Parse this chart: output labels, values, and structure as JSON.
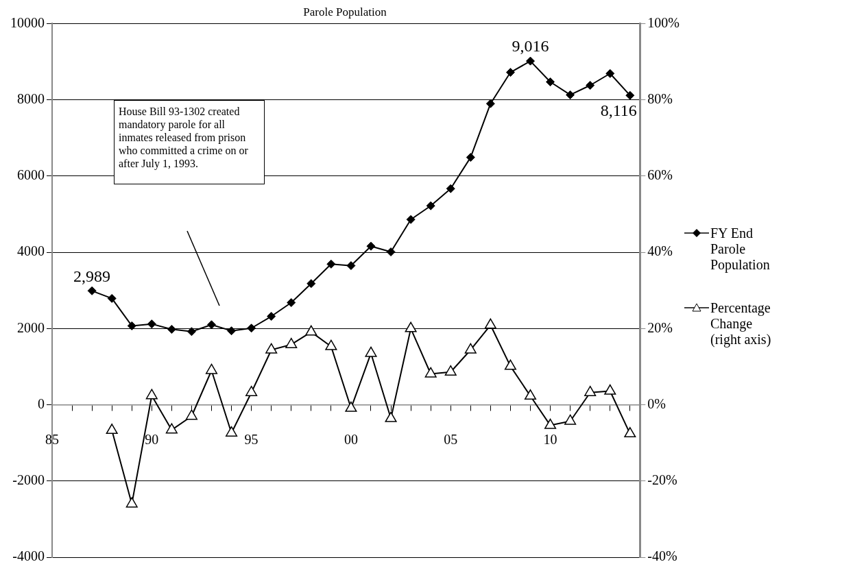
{
  "chart_data": {
    "type": "line",
    "title": "Parole Population",
    "x": [
      1987,
      1988,
      1989,
      1990,
      1991,
      1992,
      1993,
      1994,
      1995,
      1996,
      1997,
      1998,
      1999,
      2000,
      2001,
      2002,
      2003,
      2004,
      2005,
      2006,
      2007,
      2008,
      2009,
      2010,
      2011,
      2012,
      2013,
      2014
    ],
    "series": [
      {
        "name": "FY End Parole Population",
        "color": "#000000",
        "marker": "diamond",
        "values": [
          2989,
          2790,
          2070,
          2120,
          1980,
          1920,
          2100,
          1940,
          2010,
          2320,
          2680,
          3180,
          3690,
          3650,
          4160,
          4010,
          4860,
          5220,
          5670,
          6490,
          7900,
          8720,
          9016,
          8470,
          8130,
          8380,
          8690,
          8116
        ],
        "value_labels": [
          "2,989",
          null,
          null,
          null,
          null,
          null,
          null,
          null,
          null,
          null,
          null,
          null,
          null,
          null,
          null,
          null,
          null,
          null,
          null,
          null,
          null,
          null,
          "9,016",
          null,
          null,
          null,
          null,
          "8,116"
        ]
      },
      {
        "name": "Percentage Change (right axis)",
        "color": "#000000",
        "marker": "triangle",
        "axis": "y2",
        "values": [
          null,
          -6.7,
          -26,
          2.4,
          -6.6,
          -3,
          9,
          -7.4,
          3.2,
          14.4,
          15.8,
          19.1,
          15.3,
          -0.9,
          13.5,
          -3.6,
          20,
          8.1,
          8.6,
          14.4,
          20.9,
          10.1,
          2.3,
          -5.4,
          -4.3,
          3.2,
          3.6,
          -7.6
        ]
      }
    ],
    "xlim": [
      1985,
      2014.5
    ],
    "xticks": [
      {
        "value": 1985,
        "label": "85"
      },
      {
        "value": 1986,
        "label": null
      },
      {
        "value": 1987,
        "label": null
      },
      {
        "value": 1988,
        "label": null
      },
      {
        "value": 1989,
        "label": null
      },
      {
        "value": 1990,
        "label": "90"
      },
      {
        "value": 1991,
        "label": null
      },
      {
        "value": 1992,
        "label": null
      },
      {
        "value": 1993,
        "label": null
      },
      {
        "value": 1994,
        "label": null
      },
      {
        "value": 1995,
        "label": "95"
      },
      {
        "value": 1996,
        "label": null
      },
      {
        "value": 1997,
        "label": null
      },
      {
        "value": 1998,
        "label": null
      },
      {
        "value": 1999,
        "label": null
      },
      {
        "value": 2000,
        "label": "00"
      },
      {
        "value": 2001,
        "label": null
      },
      {
        "value": 2002,
        "label": null
      },
      {
        "value": 2003,
        "label": null
      },
      {
        "value": 2004,
        "label": null
      },
      {
        "value": 2005,
        "label": "05"
      },
      {
        "value": 2006,
        "label": null
      },
      {
        "value": 2007,
        "label": null
      },
      {
        "value": 2008,
        "label": null
      },
      {
        "value": 2009,
        "label": null
      },
      {
        "value": 2010,
        "label": "10"
      },
      {
        "value": 2011,
        "label": null
      },
      {
        "value": 2012,
        "label": null
      },
      {
        "value": 2013,
        "label": null
      },
      {
        "value": 2014,
        "label": null
      }
    ],
    "ylim": [
      -4000,
      10000
    ],
    "yticks": [
      -4000,
      -2000,
      0,
      2000,
      4000,
      6000,
      8000,
      10000
    ],
    "y2lim": [
      -40,
      100
    ],
    "y2ticks": [
      {
        "value": -40,
        "label": "-40%"
      },
      {
        "value": -20,
        "label": "-20%"
      },
      {
        "value": 0,
        "label": "0%"
      },
      {
        "value": 20,
        "label": "20%"
      },
      {
        "value": 40,
        "label": "40%"
      },
      {
        "value": 60,
        "label": "60%"
      },
      {
        "value": 80,
        "label": "80%"
      },
      {
        "value": 100,
        "label": "100%"
      }
    ],
    "grid": "y",
    "legend": "right",
    "line_style": "solid",
    "annotations": [
      "House Bill 93-1302 created mandatory parole for all inmates released from prison who committed a crime on or after July 1, 1993."
    ]
  }
}
